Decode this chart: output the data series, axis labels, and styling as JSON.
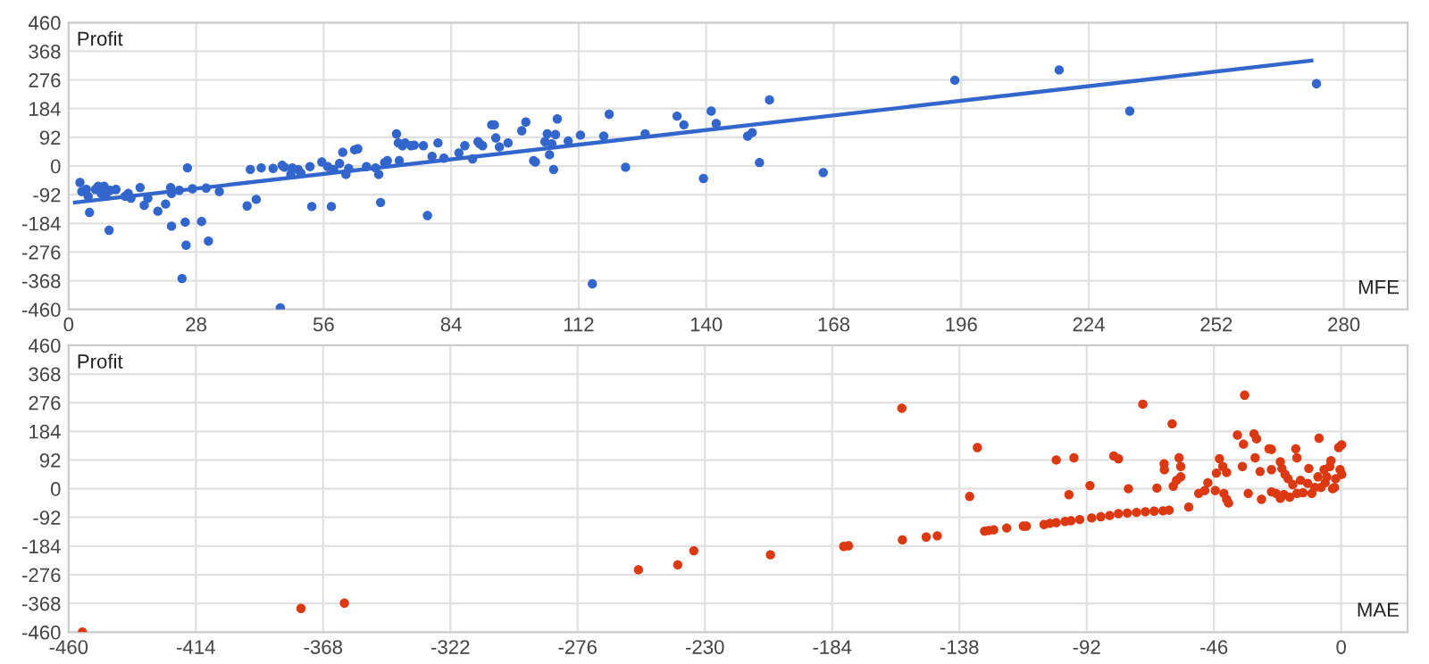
{
  "chart_data": [
    {
      "type": "scatter",
      "xlabel": "MFE",
      "ylabel": "Profit",
      "xlim": [
        0,
        294
      ],
      "ylim": [
        -460,
        460
      ],
      "xticks": [
        0,
        28,
        56,
        84,
        112,
        140,
        168,
        196,
        224,
        252,
        280
      ],
      "yticks": [
        -460,
        -368,
        -276,
        -184,
        -92,
        0,
        92,
        184,
        276,
        368,
        460
      ],
      "grid": true,
      "series": [
        {
          "marker": "circle",
          "color": "#3366cc",
          "x": [
            2.5,
            2.9,
            3.9,
            4.3,
            4.6,
            5.9,
            6.5,
            7.2,
            7.8,
            8.2,
            8.9,
            9.1,
            10.4,
            12.4,
            13.1,
            13.7,
            15.7,
            16.6,
            17.4,
            19.6,
            21.3,
            22.4,
            22.6,
            22.6,
            24.3,
            24.9,
            25.6,
            25.8,
            26.1,
            27.2,
            29.2,
            30.2,
            30.7,
            33.1,
            39.2,
            39.9,
            41.2,
            42.3,
            44.9,
            46.5,
            46.9,
            47.4,
            48.8,
            49.1,
            50.4,
            51.0,
            53.0,
            53.4,
            55.6,
            56.9,
            57.7,
            58.2,
            59.5,
            60.2,
            60.9,
            61.5,
            62.8,
            63.5,
            65.4,
            67.4,
            68.1,
            68.5,
            69.4,
            70.0,
            72.0,
            72.4,
            72.6,
            73.3,
            73.9,
            75.2,
            75.9,
            77.9,
            78.8,
            79.8,
            81.1,
            82.4,
            85.7,
            87.0,
            88.7,
            89.9,
            90.3,
            90.9,
            92.9,
            93.5,
            93.8,
            94.6,
            96.5,
            99.5,
            100.4,
            102.1,
            102.5,
            104.6,
            105.1,
            105.6,
            106.1,
            106.5,
            106.9,
            107.3,
            109.7,
            112.4,
            115.0,
            117.5,
            118.7,
            122.3,
            126.6,
            133.6,
            135.1,
            139.4,
            141.1,
            142.2,
            149.1,
            150.1,
            151.7,
            153.9,
            165.7,
            194.6,
            217.5,
            233.0,
            274.0
          ],
          "values": [
            -53,
            -82,
            -75,
            -97,
            -149,
            -75,
            -65,
            -88,
            -65,
            -97,
            -206,
            -78,
            -75,
            -97,
            -88,
            -103,
            -69,
            -126,
            -103,
            -145,
            -122,
            -69,
            -88,
            -193,
            -78,
            -361,
            -180,
            -254,
            -6,
            -73,
            -178,
            -71,
            -241,
            -82,
            -128,
            -11,
            -107,
            -6,
            -8,
            -455,
            2,
            -4,
            -27,
            -6,
            -11,
            -23,
            -2,
            -130,
            13,
            -2,
            -130,
            -11,
            8,
            44,
            -27,
            -8,
            52,
            55,
            -2,
            -6,
            -27,
            -117,
            11,
            17,
            103,
            74,
            17,
            65,
            74,
            65,
            67,
            65,
            -159,
            31,
            74,
            25,
            42,
            65,
            23,
            78,
            71,
            65,
            132,
            132,
            90,
            61,
            74,
            113,
            141,
            17,
            13,
            78,
            103,
            36,
            71,
            -11,
            101,
            151,
            80,
            99,
            -378,
            96,
            166,
            -4,
            103,
            160,
            132,
            -40,
            176,
            136,
            96,
            107,
            11,
            212,
            -21,
            275,
            308,
            176,
            264
          ]
        },
        {
          "type": "line",
          "color": "#3366cc",
          "x": [
            1.4,
            272.9
          ],
          "values": [
            -117,
            338
          ]
        }
      ]
    },
    {
      "type": "scatter",
      "xlabel": "MAE",
      "ylabel": "Profit",
      "xlim": [
        -460,
        24
      ],
      "ylim": [
        -460,
        460
      ],
      "xticks": [
        -460,
        -414,
        -368,
        -322,
        -276,
        -230,
        -184,
        -138,
        -92,
        -46,
        0
      ],
      "yticks": [
        -460,
        -368,
        -276,
        -184,
        -92,
        0,
        92,
        184,
        276,
        368,
        460
      ],
      "grid": true,
      "series": [
        {
          "marker": "circle",
          "color": "#dc3912",
          "x": [
            -455,
            -376,
            -360.3,
            -254,
            -239.8,
            -234,
            -206.3,
            -179.8,
            -178.1,
            -158.8,
            -158.6,
            -150,
            -146,
            -134.3,
            -131.5,
            -128.9,
            -127.4,
            -125.6,
            -120.9,
            -114.9,
            -113.8,
            -107.4,
            -105.3,
            -103,
            -103,
            -99.8,
            -98.4,
            -97.7,
            -94.5,
            -90.2,
            -86.9,
            -83.7,
            -80.5,
            -77.3,
            -74,
            -70.8,
            -67.6,
            -64.4,
            -62.2,
            -55.1,
            -96.6,
            -90.8,
            -82.2,
            -80.5,
            -76.9,
            -71.7,
            -66.6,
            -64,
            -63.9,
            -61.1,
            -60.7,
            -59.5,
            -58.6,
            -58,
            -58,
            -51.5,
            -49.3,
            -48.2,
            -45.5,
            -45.1,
            -44,
            -42.8,
            -42.4,
            -41.4,
            -40.7,
            -41.4,
            -37.5,
            -35.3,
            -34.9,
            -35.7,
            -33.6,
            -31.5,
            -30.6,
            -31.1,
            -29.3,
            -28.8,
            -26.1,
            -25.2,
            -25.2,
            -25.2,
            -23.5,
            -22,
            -21.4,
            -22,
            -20.7,
            -20.3,
            -19.2,
            -18.6,
            -17.5,
            -16.4,
            -16,
            -16,
            -14.7,
            -13.8,
            -12.1,
            -11.7,
            -10.6,
            -9.5,
            -8.4,
            -8,
            -7.3,
            -6.2,
            -5.8,
            -5.2,
            -4.1,
            -3.7,
            -3.1,
            -2.4,
            -2,
            -0.9,
            0.2,
            -0.4,
            0.2
          ],
          "values": [
            -460,
            -384,
            -367,
            -260,
            -244,
            -199,
            -212,
            -185,
            -183,
            258,
            -164,
            -155,
            -151,
            -25,
            132,
            -136,
            -134,
            -132,
            -126,
            -120,
            -120,
            -115,
            -111,
            -109,
            92,
            -105,
            -19,
            -103,
            -99,
            -94,
            -90,
            -86,
            -80,
            -78,
            -76,
            -74,
            -72,
            -71,
            -69,
            -59,
            99,
            10,
            105,
            96,
            0,
            271,
            2,
            80,
            61,
            208,
            8,
            27,
            99,
            71,
            38,
            -15,
            -6,
            19,
            -6,
            50,
            96,
            71,
            -15,
            -34,
            -46,
            52,
            172,
            143,
            300,
            71,
            -15,
            176,
            160,
            99,
            55,
            -34,
            128,
            126,
            61,
            -10,
            -15,
            86,
            65,
            -31,
            -19,
            46,
            32,
            -27,
            13,
            128,
            99,
            -15,
            27,
            -13,
            17,
            65,
            -15,
            4,
            38,
            162,
            4,
            61,
            19,
            38,
            71,
            90,
            0,
            4,
            32,
            132,
            141,
            61,
            46
          ]
        }
      ]
    }
  ]
}
